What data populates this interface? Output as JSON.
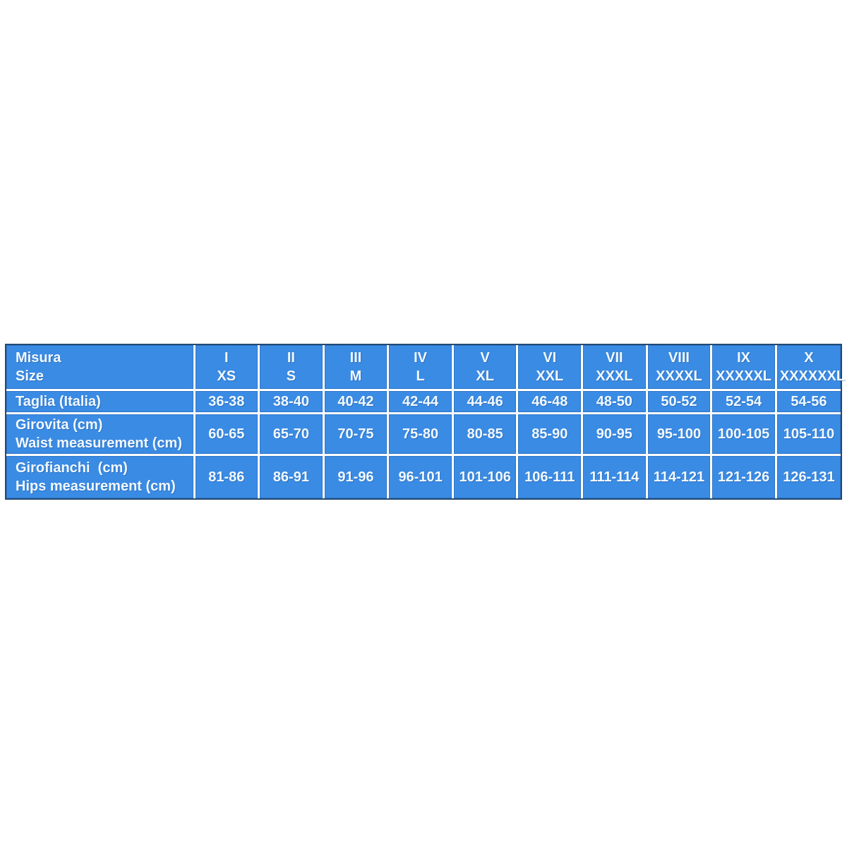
{
  "page": {
    "background": "#ffffff"
  },
  "colors": {
    "cell_blue": "#3a8be4",
    "grid_white": "#ffffff",
    "outer_navy": "#234a74",
    "text_color": "#f2f9ff"
  },
  "table": {
    "header": {
      "col0_line1": "Misura",
      "col0_line2": "Size",
      "columns": [
        {
          "numeral": "I",
          "size": "XS"
        },
        {
          "numeral": "II",
          "size": "S"
        },
        {
          "numeral": "III",
          "size": "M"
        },
        {
          "numeral": "IV",
          "size": "L"
        },
        {
          "numeral": "V",
          "size": "XL"
        },
        {
          "numeral": "VI",
          "size": "XXL"
        },
        {
          "numeral": "VII",
          "size": "XXXL"
        },
        {
          "numeral": "VIII",
          "size": "XXXXL"
        },
        {
          "numeral": "IX",
          "size": "XXXXXL"
        },
        {
          "numeral": "X",
          "size": "XXXXXXL"
        }
      ]
    },
    "rows": [
      {
        "label_line1": "Taglia (Italia)",
        "label_line2": "",
        "values": [
          "36-38",
          "38-40",
          "40-42",
          "42-44",
          "44-46",
          "46-48",
          "48-50",
          "50-52",
          "52-54",
          "54-56"
        ]
      },
      {
        "label_line1": "Girovita (cm)",
        "label_line2": "Waist measurement (cm)",
        "values": [
          "60-65",
          "65-70",
          "70-75",
          "75-80",
          "80-85",
          "85-90",
          "90-95",
          "95-100",
          "100-105",
          "105-110"
        ]
      },
      {
        "label_line1": "Girofianchi  (cm)",
        "label_line2": "Hips measurement (cm)",
        "values": [
          "81-86",
          "86-91",
          "91-96",
          "96-101",
          "101-106",
          "106-111",
          "111-114",
          "114-121",
          "121-126",
          "126-131"
        ]
      }
    ]
  },
  "chart_data": {
    "type": "table",
    "title": "Size chart (Misura / Size)",
    "columns": [
      "Misura / Size",
      "I XS",
      "II S",
      "III M",
      "IV L",
      "V XL",
      "VI XXL",
      "VII XXXL",
      "VIII XXXXL",
      "IX XXXXXL",
      "X XXXXXXL"
    ],
    "rows": [
      [
        "Taglia (Italia)",
        "36-38",
        "38-40",
        "40-42",
        "42-44",
        "44-46",
        "46-48",
        "48-50",
        "50-52",
        "52-54",
        "54-56"
      ],
      [
        "Girovita (cm) / Waist measurement (cm)",
        "60-65",
        "65-70",
        "70-75",
        "75-80",
        "80-85",
        "85-90",
        "90-95",
        "95-100",
        "100-105",
        "105-110"
      ],
      [
        "Girofianchi (cm) / Hips measurement (cm)",
        "81-86",
        "86-91",
        "91-96",
        "96-101",
        "101-106",
        "106-111",
        "111-114",
        "114-121",
        "121-126",
        "126-131"
      ]
    ]
  }
}
